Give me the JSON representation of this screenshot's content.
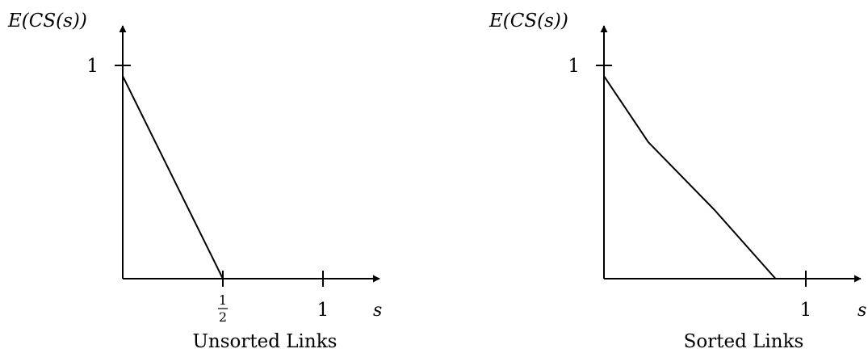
{
  "chart_data": [
    {
      "type": "line",
      "title": "",
      "caption": "Unsorted Links",
      "xlabel": "s",
      "ylabel": "E(CS(s))",
      "xlim": [
        0,
        1.05
      ],
      "ylim": [
        0,
        1.05
      ],
      "x_ticks": [
        {
          "value": 0.5,
          "num": "1",
          "den": "2"
        },
        {
          "value": 1,
          "label": "1"
        }
      ],
      "y_ticks": [
        {
          "value": 1,
          "label": "1"
        }
      ],
      "series": [
        {
          "x": [
            0,
            0.5
          ],
          "y": [
            0.95,
            0
          ]
        }
      ],
      "grid": false
    },
    {
      "type": "line",
      "title": "",
      "caption": "Sorted Links",
      "xlabel": "s",
      "ylabel": "E(CS(s))",
      "xlim": [
        0,
        1.05
      ],
      "ylim": [
        0,
        1.05
      ],
      "x_ticks": [
        {
          "value": 1,
          "label": "1"
        }
      ],
      "y_ticks": [
        {
          "value": 1,
          "label": "1"
        }
      ],
      "series": [
        {
          "x": [
            0,
            0.22,
            0.55,
            0.85
          ],
          "y": [
            0.95,
            0.64,
            0.32,
            0
          ]
        }
      ],
      "grid": false
    }
  ]
}
